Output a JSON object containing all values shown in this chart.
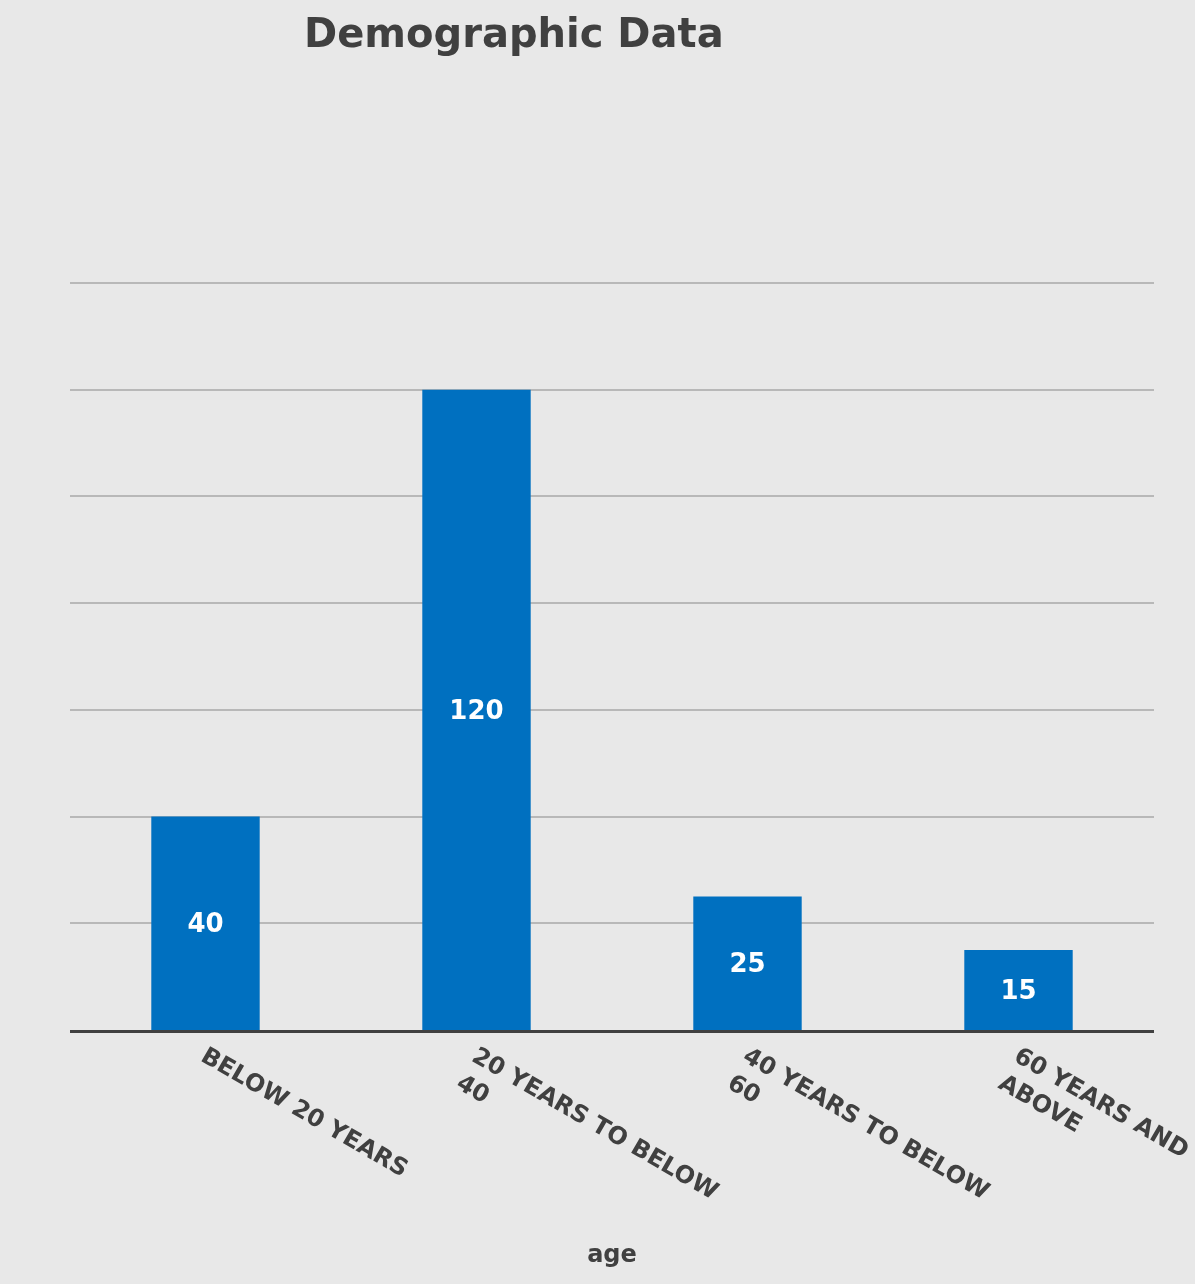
{
  "chart_data": {
    "type": "bar",
    "title": "Demographic Data",
    "xlabel": "age",
    "categories": [
      "BELOW 20 YEARS",
      "20 YEARS TO BELOW 40",
      "40 YEARS TO BELOW 60",
      "60 YEARS AND ABOVE"
    ],
    "values": [
      40,
      120,
      25,
      15
    ],
    "color": "#0070c0",
    "data_labels": true,
    "yticks": [
      {
        "value": 0,
        "label": null
      },
      {
        "value": 20,
        "label": null
      },
      {
        "value": 40,
        "label": null
      },
      {
        "value": 60,
        "label": null
      },
      {
        "value": 80,
        "label": null
      },
      {
        "value": 100,
        "label": null
      },
      {
        "value": 120,
        "label": null
      },
      {
        "value": 140,
        "label": null
      }
    ],
    "tick_labels": "x",
    "grid": "y"
  }
}
